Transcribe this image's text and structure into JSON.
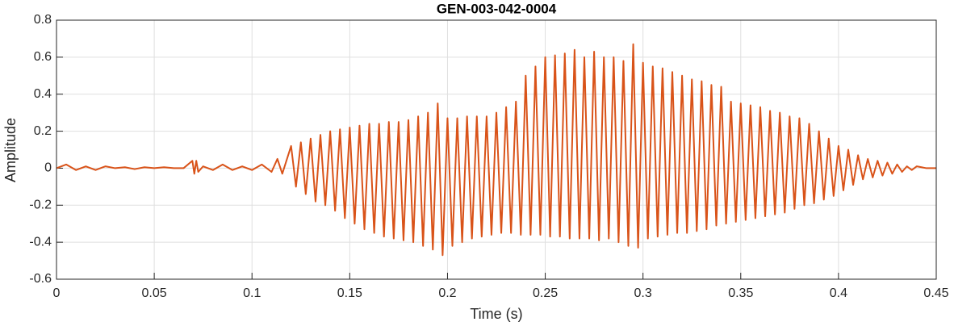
{
  "chart_data": {
    "type": "line",
    "title": "GEN-003-042-0004",
    "x_label": "Time (s)",
    "y_label": "Amplitude",
    "color": "#d95319",
    "grid": true,
    "xlim": [
      0,
      0.45
    ],
    "ylim": [
      -0.6,
      0.8
    ],
    "xticks": [
      0,
      0.05,
      0.1,
      0.15,
      0.2,
      0.25,
      0.3,
      0.35,
      0.4,
      0.45
    ],
    "yticks": [
      -0.6,
      -0.4,
      -0.2,
      0,
      0.2,
      0.4,
      0.6,
      0.8
    ],
    "x": [
      0,
      0.005,
      0.01,
      0.015,
      0.02,
      0.025,
      0.03,
      0.035,
      0.04,
      0.045,
      0.05,
      0.055,
      0.06,
      0.065,
      0.0695,
      0.0705,
      0.0715,
      0.0725,
      0.075,
      0.08,
      0.085,
      0.09,
      0.095,
      0.1,
      0.105,
      0.11,
      0.113,
      0.1155,
      0.12,
      0.1225,
      0.125,
      0.1275,
      0.13,
      0.1325,
      0.135,
      0.1375,
      0.14,
      0.1425,
      0.145,
      0.1475,
      0.15,
      0.1525,
      0.155,
      0.1575,
      0.16,
      0.1625,
      0.165,
      0.1675,
      0.17,
      0.1725,
      0.175,
      0.1775,
      0.18,
      0.1825,
      0.185,
      0.1875,
      0.19,
      0.1925,
      0.195,
      0.1975,
      0.2,
      0.2025,
      0.205,
      0.2075,
      0.21,
      0.2125,
      0.215,
      0.2175,
      0.22,
      0.2225,
      0.225,
      0.2275,
      0.23,
      0.2325,
      0.235,
      0.2375,
      0.24,
      0.2425,
      0.245,
      0.2475,
      0.25,
      0.2525,
      0.255,
      0.2575,
      0.26,
      0.2625,
      0.265,
      0.2675,
      0.27,
      0.2725,
      0.275,
      0.2775,
      0.28,
      0.2825,
      0.285,
      0.2875,
      0.29,
      0.2925,
      0.295,
      0.2975,
      0.3,
      0.3025,
      0.305,
      0.3075,
      0.31,
      0.3125,
      0.315,
      0.3175,
      0.32,
      0.3225,
      0.325,
      0.3275,
      0.33,
      0.3325,
      0.335,
      0.3375,
      0.34,
      0.3425,
      0.345,
      0.3475,
      0.35,
      0.3525,
      0.355,
      0.3575,
      0.36,
      0.3625,
      0.365,
      0.3675,
      0.37,
      0.3725,
      0.375,
      0.3775,
      0.38,
      0.3825,
      0.385,
      0.3875,
      0.39,
      0.3925,
      0.395,
      0.3975,
      0.4,
      0.4025,
      0.405,
      0.4075,
      0.41,
      0.4125,
      0.415,
      0.4175,
      0.42,
      0.4225,
      0.425,
      0.4275,
      0.43,
      0.4325,
      0.435,
      0.4375,
      0.44,
      0.445,
      0.45
    ],
    "values": [
      0,
      0.02,
      -0.01,
      0.01,
      -0.01,
      0.01,
      0,
      0.005,
      -0.005,
      0.005,
      0,
      0.005,
      0,
      0,
      0.04,
      -0.03,
      0.04,
      -0.02,
      0.01,
      -0.01,
      0.02,
      -0.01,
      0.01,
      -0.01,
      0.02,
      -0.02,
      0.05,
      -0.03,
      0.12,
      -0.1,
      0.14,
      -0.14,
      0.16,
      -0.18,
      0.18,
      -0.2,
      0.2,
      -0.23,
      0.21,
      -0.27,
      0.22,
      -0.3,
      0.23,
      -0.33,
      0.24,
      -0.35,
      0.24,
      -0.37,
      0.25,
      -0.38,
      0.25,
      -0.39,
      0.26,
      -0.4,
      0.28,
      -0.42,
      0.3,
      -0.44,
      0.35,
      -0.47,
      0.27,
      -0.42,
      0.27,
      -0.4,
      0.28,
      -0.38,
      0.28,
      -0.37,
      0.28,
      -0.36,
      0.3,
      -0.35,
      0.33,
      -0.35,
      0.36,
      -0.36,
      0.5,
      -0.36,
      0.55,
      -0.36,
      0.6,
      -0.37,
      0.61,
      -0.37,
      0.62,
      -0.38,
      0.64,
      -0.38,
      0.6,
      -0.38,
      0.63,
      -0.39,
      0.6,
      -0.38,
      0.6,
      -0.4,
      0.58,
      -0.42,
      0.67,
      -0.43,
      0.57,
      -0.38,
      0.55,
      -0.37,
      0.54,
      -0.36,
      0.52,
      -0.35,
      0.5,
      -0.35,
      0.48,
      -0.34,
      0.47,
      -0.33,
      0.45,
      -0.31,
      0.44,
      -0.3,
      0.36,
      -0.29,
      0.35,
      -0.28,
      0.34,
      -0.27,
      0.33,
      -0.26,
      0.31,
      -0.25,
      0.3,
      -0.24,
      0.28,
      -0.22,
      0.27,
      -0.2,
      0.24,
      -0.19,
      0.2,
      -0.17,
      0.16,
      -0.15,
      0.12,
      -0.12,
      0.1,
      -0.09,
      0.07,
      -0.06,
      0.05,
      -0.05,
      0.04,
      -0.04,
      0.03,
      -0.03,
      0.02,
      -0.02,
      0.01,
      -0.01,
      0.01,
      0,
      0
    ]
  }
}
